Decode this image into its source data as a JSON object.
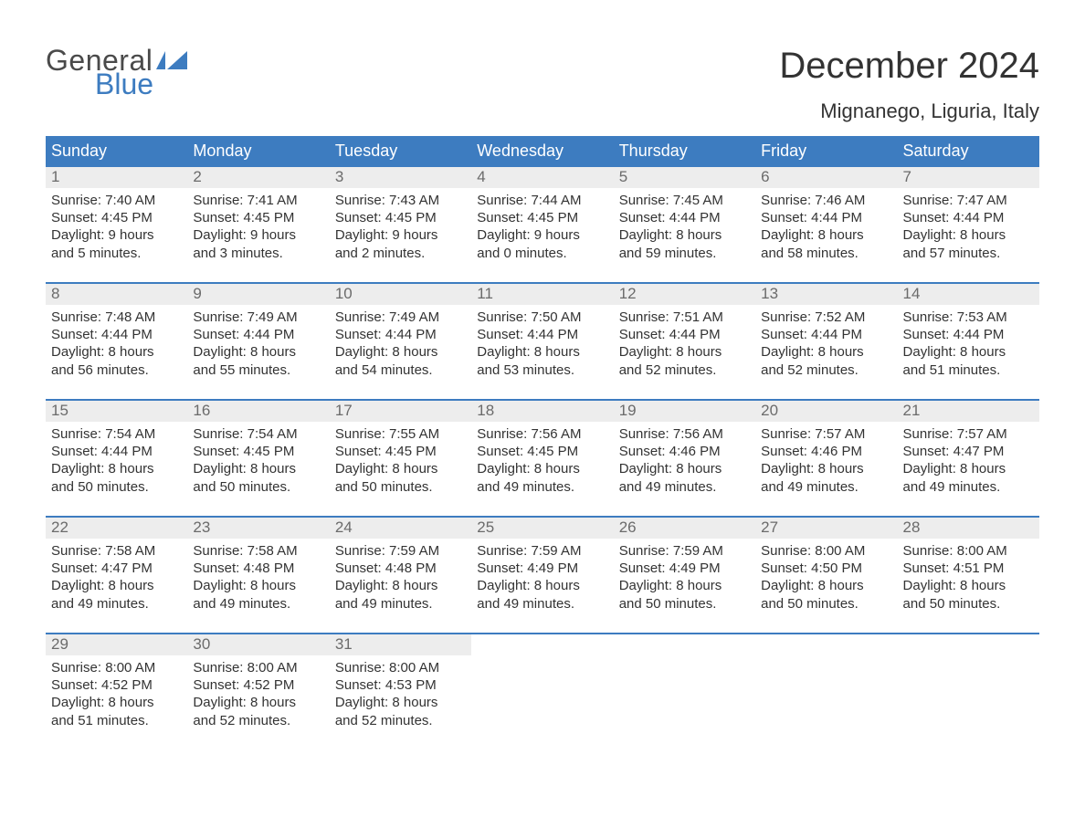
{
  "brand": {
    "text_general": "General",
    "text_blue": "Blue",
    "flag_color": "#3d7cc0",
    "general_color": "#4a4a4a"
  },
  "title": "December 2024",
  "location": "Mignanego, Liguria, Italy",
  "colors": {
    "header_bg": "#3d7cc0",
    "header_text": "#ffffff",
    "daynum_bg": "#ededed",
    "daynum_text": "#6b6b6b",
    "body_text": "#333333",
    "week_border": "#3d7cc0",
    "page_bg": "#ffffff"
  },
  "typography": {
    "title_fontsize": 40,
    "location_fontsize": 22,
    "header_fontsize": 18,
    "daynum_fontsize": 17,
    "body_fontsize": 15,
    "font_family": "Arial"
  },
  "weekday_headers": [
    "Sunday",
    "Monday",
    "Tuesday",
    "Wednesday",
    "Thursday",
    "Friday",
    "Saturday"
  ],
  "weeks": [
    [
      {
        "day": "1",
        "sunrise": "Sunrise: 7:40 AM",
        "sunset": "Sunset: 4:45 PM",
        "dl1": "Daylight: 9 hours",
        "dl2": "and 5 minutes."
      },
      {
        "day": "2",
        "sunrise": "Sunrise: 7:41 AM",
        "sunset": "Sunset: 4:45 PM",
        "dl1": "Daylight: 9 hours",
        "dl2": "and 3 minutes."
      },
      {
        "day": "3",
        "sunrise": "Sunrise: 7:43 AM",
        "sunset": "Sunset: 4:45 PM",
        "dl1": "Daylight: 9 hours",
        "dl2": "and 2 minutes."
      },
      {
        "day": "4",
        "sunrise": "Sunrise: 7:44 AM",
        "sunset": "Sunset: 4:45 PM",
        "dl1": "Daylight: 9 hours",
        "dl2": "and 0 minutes."
      },
      {
        "day": "5",
        "sunrise": "Sunrise: 7:45 AM",
        "sunset": "Sunset: 4:44 PM",
        "dl1": "Daylight: 8 hours",
        "dl2": "and 59 minutes."
      },
      {
        "day": "6",
        "sunrise": "Sunrise: 7:46 AM",
        "sunset": "Sunset: 4:44 PM",
        "dl1": "Daylight: 8 hours",
        "dl2": "and 58 minutes."
      },
      {
        "day": "7",
        "sunrise": "Sunrise: 7:47 AM",
        "sunset": "Sunset: 4:44 PM",
        "dl1": "Daylight: 8 hours",
        "dl2": "and 57 minutes."
      }
    ],
    [
      {
        "day": "8",
        "sunrise": "Sunrise: 7:48 AM",
        "sunset": "Sunset: 4:44 PM",
        "dl1": "Daylight: 8 hours",
        "dl2": "and 56 minutes."
      },
      {
        "day": "9",
        "sunrise": "Sunrise: 7:49 AM",
        "sunset": "Sunset: 4:44 PM",
        "dl1": "Daylight: 8 hours",
        "dl2": "and 55 minutes."
      },
      {
        "day": "10",
        "sunrise": "Sunrise: 7:49 AM",
        "sunset": "Sunset: 4:44 PM",
        "dl1": "Daylight: 8 hours",
        "dl2": "and 54 minutes."
      },
      {
        "day": "11",
        "sunrise": "Sunrise: 7:50 AM",
        "sunset": "Sunset: 4:44 PM",
        "dl1": "Daylight: 8 hours",
        "dl2": "and 53 minutes."
      },
      {
        "day": "12",
        "sunrise": "Sunrise: 7:51 AM",
        "sunset": "Sunset: 4:44 PM",
        "dl1": "Daylight: 8 hours",
        "dl2": "and 52 minutes."
      },
      {
        "day": "13",
        "sunrise": "Sunrise: 7:52 AM",
        "sunset": "Sunset: 4:44 PM",
        "dl1": "Daylight: 8 hours",
        "dl2": "and 52 minutes."
      },
      {
        "day": "14",
        "sunrise": "Sunrise: 7:53 AM",
        "sunset": "Sunset: 4:44 PM",
        "dl1": "Daylight: 8 hours",
        "dl2": "and 51 minutes."
      }
    ],
    [
      {
        "day": "15",
        "sunrise": "Sunrise: 7:54 AM",
        "sunset": "Sunset: 4:44 PM",
        "dl1": "Daylight: 8 hours",
        "dl2": "and 50 minutes."
      },
      {
        "day": "16",
        "sunrise": "Sunrise: 7:54 AM",
        "sunset": "Sunset: 4:45 PM",
        "dl1": "Daylight: 8 hours",
        "dl2": "and 50 minutes."
      },
      {
        "day": "17",
        "sunrise": "Sunrise: 7:55 AM",
        "sunset": "Sunset: 4:45 PM",
        "dl1": "Daylight: 8 hours",
        "dl2": "and 50 minutes."
      },
      {
        "day": "18",
        "sunrise": "Sunrise: 7:56 AM",
        "sunset": "Sunset: 4:45 PM",
        "dl1": "Daylight: 8 hours",
        "dl2": "and 49 minutes."
      },
      {
        "day": "19",
        "sunrise": "Sunrise: 7:56 AM",
        "sunset": "Sunset: 4:46 PM",
        "dl1": "Daylight: 8 hours",
        "dl2": "and 49 minutes."
      },
      {
        "day": "20",
        "sunrise": "Sunrise: 7:57 AM",
        "sunset": "Sunset: 4:46 PM",
        "dl1": "Daylight: 8 hours",
        "dl2": "and 49 minutes."
      },
      {
        "day": "21",
        "sunrise": "Sunrise: 7:57 AM",
        "sunset": "Sunset: 4:47 PM",
        "dl1": "Daylight: 8 hours",
        "dl2": "and 49 minutes."
      }
    ],
    [
      {
        "day": "22",
        "sunrise": "Sunrise: 7:58 AM",
        "sunset": "Sunset: 4:47 PM",
        "dl1": "Daylight: 8 hours",
        "dl2": "and 49 minutes."
      },
      {
        "day": "23",
        "sunrise": "Sunrise: 7:58 AM",
        "sunset": "Sunset: 4:48 PM",
        "dl1": "Daylight: 8 hours",
        "dl2": "and 49 minutes."
      },
      {
        "day": "24",
        "sunrise": "Sunrise: 7:59 AM",
        "sunset": "Sunset: 4:48 PM",
        "dl1": "Daylight: 8 hours",
        "dl2": "and 49 minutes."
      },
      {
        "day": "25",
        "sunrise": "Sunrise: 7:59 AM",
        "sunset": "Sunset: 4:49 PM",
        "dl1": "Daylight: 8 hours",
        "dl2": "and 49 minutes."
      },
      {
        "day": "26",
        "sunrise": "Sunrise: 7:59 AM",
        "sunset": "Sunset: 4:49 PM",
        "dl1": "Daylight: 8 hours",
        "dl2": "and 50 minutes."
      },
      {
        "day": "27",
        "sunrise": "Sunrise: 8:00 AM",
        "sunset": "Sunset: 4:50 PM",
        "dl1": "Daylight: 8 hours",
        "dl2": "and 50 minutes."
      },
      {
        "day": "28",
        "sunrise": "Sunrise: 8:00 AM",
        "sunset": "Sunset: 4:51 PM",
        "dl1": "Daylight: 8 hours",
        "dl2": "and 50 minutes."
      }
    ],
    [
      {
        "day": "29",
        "sunrise": "Sunrise: 8:00 AM",
        "sunset": "Sunset: 4:52 PM",
        "dl1": "Daylight: 8 hours",
        "dl2": "and 51 minutes."
      },
      {
        "day": "30",
        "sunrise": "Sunrise: 8:00 AM",
        "sunset": "Sunset: 4:52 PM",
        "dl1": "Daylight: 8 hours",
        "dl2": "and 52 minutes."
      },
      {
        "day": "31",
        "sunrise": "Sunrise: 8:00 AM",
        "sunset": "Sunset: 4:53 PM",
        "dl1": "Daylight: 8 hours",
        "dl2": "and 52 minutes."
      },
      null,
      null,
      null,
      null
    ]
  ]
}
